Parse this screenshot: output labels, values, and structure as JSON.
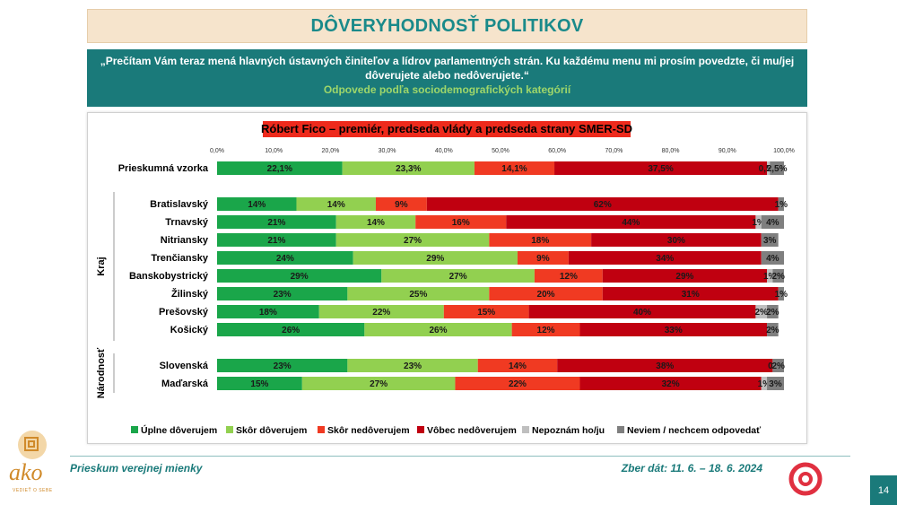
{
  "header": {
    "title": "DÔVERYHODNOSŤ POLITIKOV"
  },
  "question": {
    "text": "„Prečítam Vám teraz mená hlavných ústavných činiteľov a lídrov parlamentných strán. Ku každému menu mi prosím povedzte, či mu/jej dôverujete alebo nedôverujete.“",
    "subtitle": "Odpovede podľa sociodemografických kategórií"
  },
  "footer": {
    "left": "Prieskum verejnej mienky",
    "right": "Zber dát: 11. 6. – 18. 6. 2024",
    "page": "14"
  },
  "logo": {
    "text": "ako",
    "tagline": "VEDIEŤ O SEBE"
  },
  "colors": {
    "teal": "#1a7a7a",
    "title_bg": "#f6e4cc"
  },
  "chart_data": {
    "type": "bar",
    "orientation": "horizontal-stacked-100",
    "title": "Róbert Fico – premiér, predseda vlády a predseda strany SMER-SD",
    "title_bg": "#ee2a1c",
    "xlim": [
      0,
      100
    ],
    "x_ticks": [
      "0,0%",
      "10,0%",
      "20,0%",
      "30,0%",
      "40,0%",
      "50,0%",
      "60,0%",
      "70,0%",
      "80,0%",
      "90,0%",
      "100,0%"
    ],
    "legend_position": "bottom",
    "series": [
      {
        "name": "Úplne dôverujem",
        "color": "#1aa64a"
      },
      {
        "name": "Skôr dôverujem",
        "color": "#92d050"
      },
      {
        "name": "Skôr nedôverujem",
        "color": "#f03a22"
      },
      {
        "name": "Vôbec nedôverujem",
        "color": "#c00010"
      },
      {
        "name": "Nepoznám ho/ju",
        "color": "#bfbfbf"
      },
      {
        "name": "Neviem / nechcem odpovedať",
        "color": "#7f7f7f"
      }
    ],
    "groups": [
      {
        "label": "",
        "rows": [
          {
            "label": "Prieskumná vzorka",
            "values": [
              22.1,
              23.3,
              14.1,
              37.5,
              0.5,
              2.5
            ],
            "labels": [
              "22,1%",
              "23,3%",
              "14,1%",
              "37,5%",
              "0,5%",
              "2,5%"
            ]
          }
        ]
      },
      {
        "label": "Kraj",
        "rows": [
          {
            "label": "Bratislavský",
            "values": [
              14,
              14,
              9,
              62,
              0,
              1
            ],
            "labels": [
              "14%",
              "14%",
              "9%",
              "62%",
              "",
              "1%"
            ]
          },
          {
            "label": "Trnavský",
            "values": [
              21,
              14,
              16,
              44,
              1,
              4
            ],
            "labels": [
              "21%",
              "14%",
              "16%",
              "44%",
              "1%",
              "4%"
            ]
          },
          {
            "label": "Nitriansky",
            "values": [
              21,
              27,
              18,
              30,
              0,
              3
            ],
            "labels": [
              "21%",
              "27%",
              "18%",
              "30%",
              "",
              "3%"
            ]
          },
          {
            "label": "Trenčiansky",
            "values": [
              24,
              29,
              9,
              34,
              0,
              4
            ],
            "labels": [
              "24%",
              "29%",
              "9%",
              "34%",
              "",
              "4%"
            ]
          },
          {
            "label": "Banskobystrický",
            "values": [
              29,
              27,
              12,
              29,
              1,
              2
            ],
            "labels": [
              "29%",
              "27%",
              "12%",
              "29%",
              "1%",
              "2%"
            ]
          },
          {
            "label": "Žilinský",
            "values": [
              23,
              25,
              20,
              31,
              0,
              1
            ],
            "labels": [
              "23%",
              "25%",
              "20%",
              "31%",
              "",
              "1%"
            ]
          },
          {
            "label": "Prešovský",
            "values": [
              18,
              22,
              15,
              40,
              2,
              2
            ],
            "labels": [
              "18%",
              "22%",
              "15%",
              "40%",
              "2%",
              "2%"
            ]
          },
          {
            "label": "Košický",
            "values": [
              26,
              26,
              12,
              33,
              0,
              2
            ],
            "labels": [
              "26%",
              "26%",
              "12%",
              "33%",
              "",
              "2%"
            ]
          }
        ]
      },
      {
        "label": "Národnosť",
        "rows": [
          {
            "label": "Slovenská",
            "values": [
              23,
              23,
              14,
              38,
              0,
              2
            ],
            "labels": [
              "23%",
              "23%",
              "14%",
              "38%",
              "0%",
              "2%"
            ]
          },
          {
            "label": "Maďarská",
            "values": [
              15,
              27,
              22,
              32,
              1,
              3
            ],
            "labels": [
              "15%",
              "27%",
              "22%",
              "32%",
              "1%",
              "3%"
            ]
          }
        ]
      }
    ]
  }
}
